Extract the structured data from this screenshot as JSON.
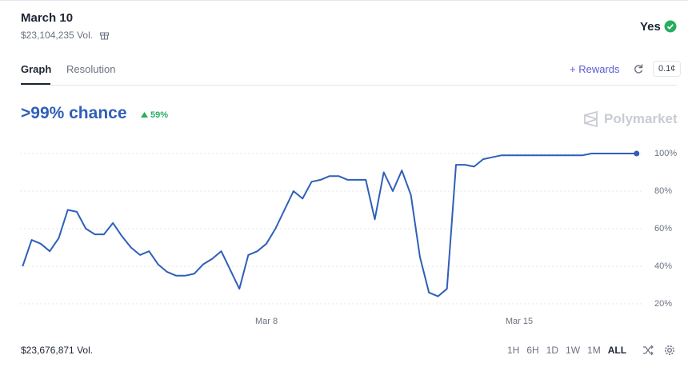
{
  "header": {
    "title": "March 10",
    "volume": "$23,104,235 Vol.",
    "outcome": "Yes"
  },
  "tabs": [
    "Graph",
    "Resolution"
  ],
  "actions": {
    "rewards": "+ Rewards",
    "spread": "0.1¢"
  },
  "chance": {
    "text": ">99% chance",
    "change": "59%"
  },
  "brand": "Polymarket",
  "footer": {
    "volume": "$23,676,871 Vol.",
    "ranges": [
      "1H",
      "6H",
      "1D",
      "1W",
      "1M",
      "ALL"
    ]
  },
  "chart_data": {
    "type": "line",
    "categories": [
      null,
      null,
      null,
      null,
      null,
      null,
      null,
      null,
      null,
      null,
      null,
      null,
      null,
      null,
      null,
      null,
      null,
      null,
      null,
      null,
      null,
      null,
      null,
      null,
      null,
      null,
      null,
      "Mar 8",
      null,
      null,
      null,
      null,
      null,
      null,
      null,
      null,
      null,
      null,
      null,
      null,
      null,
      null,
      null,
      null,
      null,
      null,
      null,
      null,
      null,
      null,
      null,
      null,
      null,
      null,
      null,
      "Mar 15",
      null,
      null,
      null,
      null,
      null,
      null,
      null,
      null,
      null,
      null,
      null,
      null,
      null
    ],
    "series": [
      {
        "name": "Yes",
        "color": "#2f5fb8",
        "values": [
          40,
          54,
          52,
          48,
          55,
          70,
          69,
          60,
          57,
          57,
          63,
          56,
          50,
          46,
          48,
          41,
          37,
          35,
          35,
          36,
          41,
          44,
          48,
          38,
          28,
          46,
          48,
          52,
          60,
          70,
          80,
          76,
          85,
          86,
          88,
          88,
          86,
          86,
          86,
          65,
          90,
          80,
          91,
          78,
          45,
          26,
          24,
          28,
          94,
          94,
          93,
          97,
          98,
          99,
          99,
          99,
          99,
          99,
          99,
          99,
          99,
          99,
          99,
          100,
          100,
          100,
          100,
          100,
          100
        ]
      }
    ],
    "ylim": [
      17,
      104
    ],
    "yticks": [
      {
        "value": 20,
        "label": "20%"
      },
      {
        "value": 40,
        "label": "40%"
      },
      {
        "value": 60,
        "label": "60%"
      },
      {
        "value": 80,
        "label": "80%"
      },
      {
        "value": 100,
        "label": "100%"
      }
    ],
    "grid": true
  }
}
